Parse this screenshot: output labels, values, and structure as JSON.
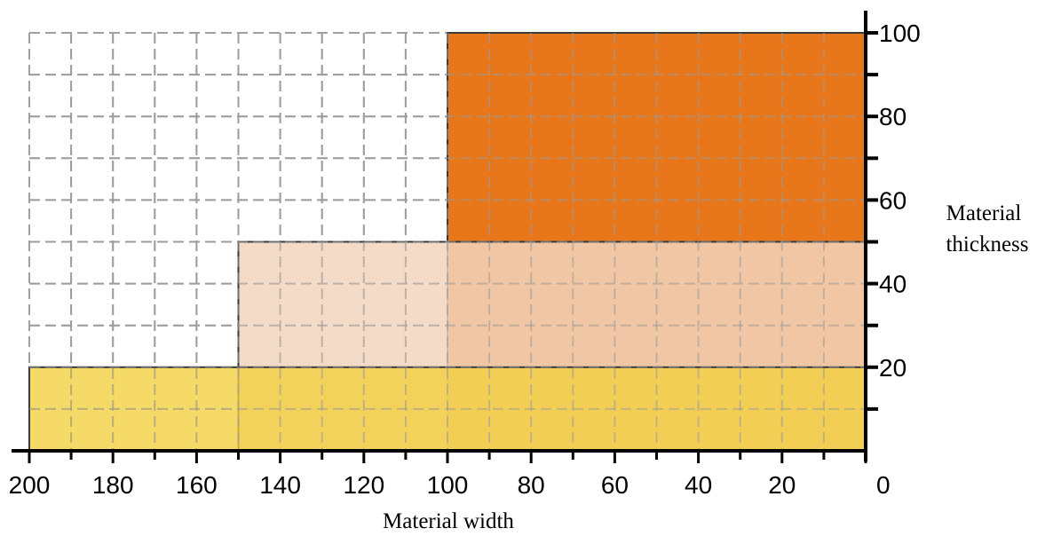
{
  "chart_data": {
    "type": "area",
    "title": "",
    "xlabel": "Material width",
    "ylabel_lines": [
      "Material",
      "thickness"
    ],
    "x_axis": {
      "min": 0,
      "max": 200,
      "reversed": true,
      "tick_step": 10,
      "label_step": 20
    },
    "y_axis": {
      "min": 0,
      "max": 100,
      "tick_step": 10,
      "label_step": 20,
      "position": "right"
    },
    "x_tick_labels": [
      "200",
      "180",
      "160",
      "140",
      "120",
      "100",
      "80",
      "60",
      "40",
      "20",
      "0"
    ],
    "y_tick_labels": [
      "20",
      "40",
      "60",
      "80",
      "100"
    ],
    "grid": true,
    "regions": [
      {
        "x": [
          0,
          100
        ],
        "y": [
          0,
          100
        ],
        "color": "#e8761a"
      },
      {
        "x": [
          0,
          150
        ],
        "y": [
          0,
          50
        ],
        "color": "#f1d5bd",
        "opacity": 0.85
      },
      {
        "x": [
          0,
          200
        ],
        "y": [
          0,
          20
        ],
        "color": "#f2cf3e",
        "opacity": 0.78
      }
    ]
  }
}
